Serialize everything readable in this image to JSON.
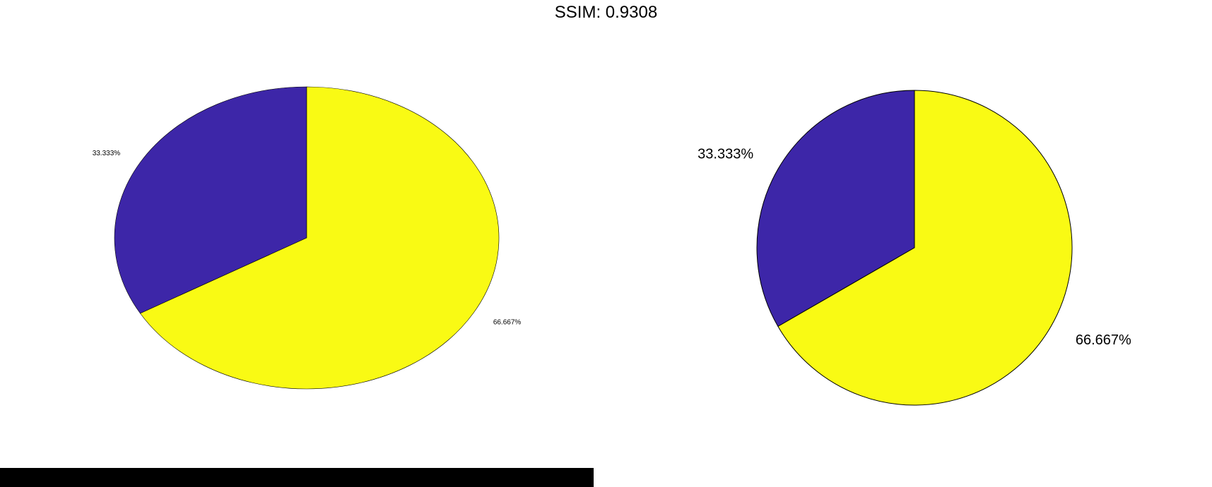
{
  "title": "SSIM: 0.9308",
  "colors": {
    "slice_1": "#3d26a8",
    "slice_2": "#f9fa14",
    "edge": "#000000",
    "bar": "#000000"
  },
  "chart_data": [
    {
      "type": "pie",
      "panel": "left",
      "slices": [
        {
          "value": 1,
          "label": "33.333%"
        },
        {
          "value": 2,
          "label": "66.667%"
        }
      ]
    },
    {
      "type": "pie",
      "panel": "right",
      "slices": [
        {
          "value": 1,
          "label": "33.333%"
        },
        {
          "value": 2,
          "label": "66.667%"
        }
      ]
    }
  ]
}
